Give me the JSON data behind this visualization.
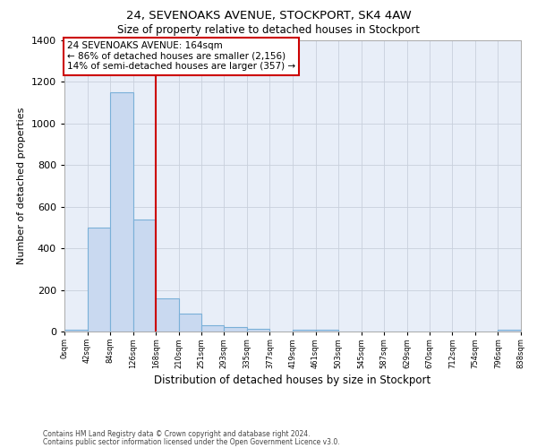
{
  "title": "24, SEVENOAKS AVENUE, STOCKPORT, SK4 4AW",
  "subtitle": "Size of property relative to detached houses in Stockport",
  "xlabel": "Distribution of detached houses by size in Stockport",
  "ylabel": "Number of detached properties",
  "bar_left_edges": [
    0,
    42,
    84,
    126,
    168,
    210,
    251,
    293,
    335,
    377,
    419,
    461,
    503,
    545,
    587,
    629,
    670,
    712,
    754,
    796
  ],
  "bar_heights": [
    10,
    500,
    1150,
    540,
    160,
    85,
    30,
    20,
    15,
    0,
    10,
    10,
    0,
    0,
    0,
    0,
    0,
    0,
    0,
    10
  ],
  "bar_widths": [
    42,
    42,
    42,
    42,
    42,
    41,
    42,
    42,
    42,
    42,
    42,
    42,
    42,
    42,
    42,
    41,
    42,
    42,
    42,
    42
  ],
  "xtick_labels": [
    "0sqm",
    "42sqm",
    "84sqm",
    "126sqm",
    "168sqm",
    "210sqm",
    "251sqm",
    "293sqm",
    "335sqm",
    "377sqm",
    "419sqm",
    "461sqm",
    "503sqm",
    "545sqm",
    "587sqm",
    "629sqm",
    "670sqm",
    "712sqm",
    "754sqm",
    "796sqm",
    "838sqm"
  ],
  "xtick_positions": [
    0,
    42,
    84,
    126,
    168,
    210,
    251,
    293,
    335,
    377,
    419,
    461,
    503,
    545,
    587,
    629,
    670,
    712,
    754,
    796,
    838
  ],
  "bar_color": "#c9d9f0",
  "bar_edge_color": "#7ab0d8",
  "grid_color": "#c8d0dc",
  "bg_color": "#e8eef8",
  "vline_x": 168,
  "vline_color": "#cc0000",
  "annotation_line1": "24 SEVENOAKS AVENUE: 164sqm",
  "annotation_line2": "← 86% of detached houses are smaller (2,156)",
  "annotation_line3": "14% of semi-detached houses are larger (357) →",
  "annotation_box_color": "#cc0000",
  "ann_x": 5,
  "ann_y": 1395,
  "ylim_max": 1400,
  "yticks": [
    0,
    200,
    400,
    600,
    800,
    1000,
    1200,
    1400
  ],
  "xlim_max": 838,
  "footnote1": "Contains HM Land Registry data © Crown copyright and database right 2024.",
  "footnote2": "Contains public sector information licensed under the Open Government Licence v3.0."
}
